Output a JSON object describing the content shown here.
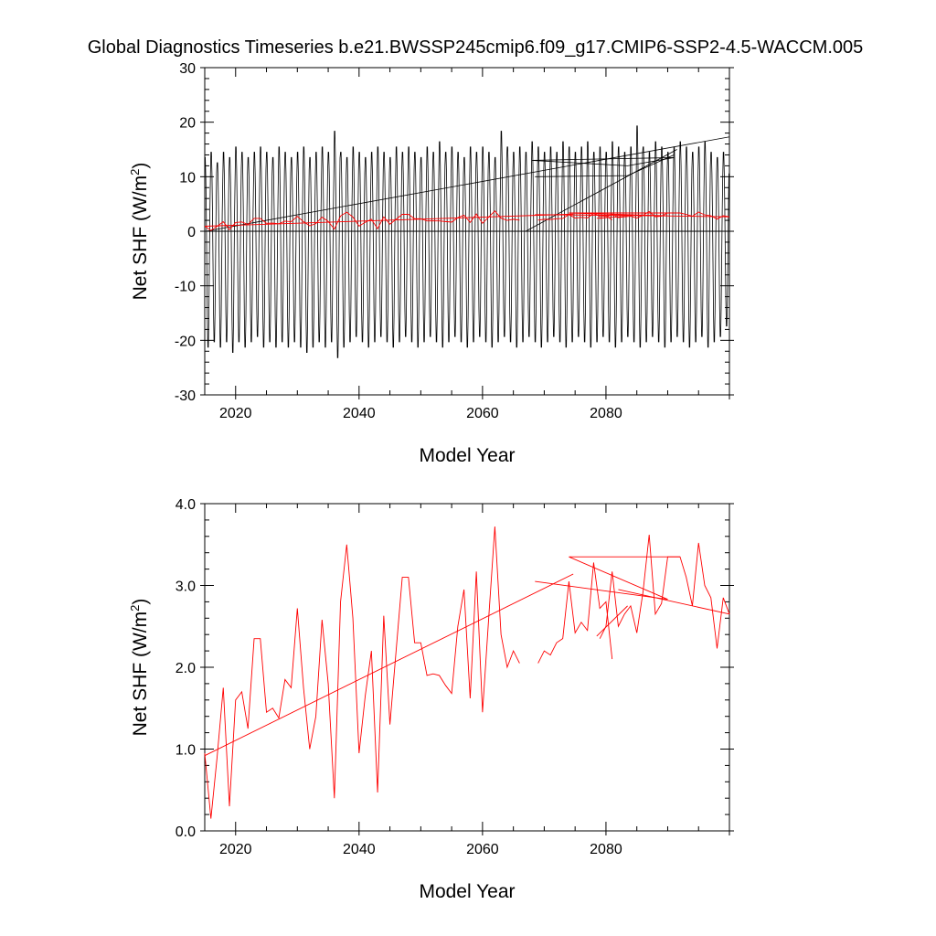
{
  "page_title": "Global Diagnostics Timeseries b.e21.BWSSP245cmip6.f09_g17.CMIP6-SSP2-4.5-WACCM.005",
  "chart_data": [
    {
      "type": "line",
      "ylabel_main": "Net SHF (W/m",
      "ylabel_sup": "2",
      "ylabel_close": ")",
      "xlabel": "Model Year",
      "xlim": [
        2015,
        2100
      ],
      "ylim": [
        -30,
        30
      ],
      "x_ticks": [
        2020,
        2040,
        2060,
        2080
      ],
      "x_tick_labels": [
        "2020",
        "2040",
        "2060",
        "2080"
      ],
      "y_ticks": [
        -30,
        -20,
        -10,
        0,
        10,
        20,
        30
      ],
      "y_tick_labels": [
        "-30",
        "-20",
        "-10",
        "0",
        "10",
        "20",
        "30"
      ],
      "zero_line": 0,
      "monthly_series": {
        "color": "#000000",
        "start_year": 2015,
        "segments": [
          {
            "start": 2015.0,
            "end": 2067.0
          },
          {
            "start": 2067.0,
            "end": 2100.0
          }
        ],
        "seasonal_amplitude_high": [
          14,
          15,
          13,
          15,
          14,
          16,
          15,
          14,
          15,
          16,
          15,
          14,
          16,
          15,
          14,
          15,
          16,
          14,
          15,
          16,
          15,
          19,
          15,
          14,
          16,
          15,
          14,
          15,
          16,
          15,
          14,
          16,
          15,
          16,
          15,
          14,
          16,
          15,
          17,
          15,
          16,
          15,
          14,
          16,
          15,
          16,
          15,
          14,
          19,
          16,
          15,
          16,
          15,
          17,
          16,
          15,
          16,
          15,
          17,
          16,
          15,
          16,
          17,
          15,
          16,
          15,
          17,
          16,
          15,
          16,
          20,
          16,
          15,
          17,
          16,
          15,
          16,
          17,
          16,
          15,
          16,
          17,
          15,
          14,
          15
        ],
        "seasonal_amplitude_low": [
          -22,
          -21,
          -22,
          -21,
          -23,
          -21,
          -22,
          -21,
          -20,
          -22,
          -21,
          -22,
          -21,
          -22,
          -21,
          -22,
          -23,
          -22,
          -21,
          -22,
          -21,
          -24,
          -22,
          -21,
          -20,
          -21,
          -22,
          -21,
          -20,
          -21,
          -22,
          -21,
          -20,
          -21,
          -22,
          -21,
          -20,
          -21,
          -22,
          -21,
          -20,
          -21,
          -22,
          -21,
          -20,
          -21,
          -22,
          -21,
          -20,
          -21,
          -22,
          -21,
          -20,
          -21,
          -22,
          -21,
          -20,
          -21,
          -22,
          -21,
          -20,
          -21,
          -22,
          -21,
          -20,
          -21,
          -22,
          -21,
          -20,
          -21,
          -22,
          -21,
          -20,
          -21,
          -22,
          -21,
          -20,
          -21,
          -22,
          -21,
          -20,
          -22,
          -21,
          -20,
          -18
        ]
      },
      "overlay_black_lines": [
        {
          "x": [
            2015.2,
            2100.0
          ],
          "y": [
            0.0,
            17.3
          ]
        },
        {
          "x": [
            2067.0,
            2091.5
          ],
          "y": [
            0.0,
            15.0
          ]
        },
        {
          "x": [
            2068.0,
            2091.0,
            2083.5,
            2068.0
          ],
          "y": [
            13.0,
            13.5,
            12.0,
            13.0
          ]
        },
        {
          "x": [
            2068.5,
            2083.5,
            2091.0
          ],
          "y": [
            10.0,
            10.2,
            14.0
          ]
        }
      ],
      "annual_series": {
        "color": "#ff0000",
        "years": [
          2015,
          2016,
          2017,
          2018,
          2019,
          2020,
          2021,
          2022,
          2023,
          2024,
          2025,
          2026,
          2027,
          2028,
          2029,
          2030,
          2031,
          2032,
          2033,
          2034,
          2035,
          2036,
          2037,
          2038,
          2039,
          2040,
          2041,
          2042,
          2043,
          2044,
          2045,
          2046,
          2047,
          2048,
          2049,
          2050,
          2051,
          2052,
          2053,
          2054,
          2055,
          2056,
          2057,
          2058,
          2059,
          2060,
          2061,
          2062,
          2063,
          2064,
          2065,
          2066
        ],
        "values": [
          0.95,
          0.15,
          0.9,
          1.75,
          0.3,
          1.6,
          1.7,
          1.25,
          2.35,
          2.35,
          1.45,
          1.5,
          1.38,
          1.85,
          1.75,
          2.72,
          1.75,
          1.0,
          1.4,
          2.58,
          1.8,
          0.4,
          2.8,
          3.5,
          2.6,
          0.95,
          1.65,
          2.2,
          0.47,
          2.63,
          1.3,
          2.2,
          3.1,
          3.1,
          2.3,
          2.3,
          1.9,
          1.92,
          1.9,
          1.78,
          1.68,
          2.5,
          2.95,
          1.62,
          3.17,
          1.45,
          2.6,
          3.72,
          2.4,
          2.0,
          2.2,
          2.05
        ]
      },
      "annual_series_b": {
        "color": "#ff0000",
        "years": [
          2069,
          2070,
          2071,
          2072,
          2073,
          2074,
          2075,
          2076,
          2077,
          2078,
          2079,
          2080,
          2081
        ],
        "values": [
          2.05,
          2.2,
          2.15,
          2.3,
          2.35,
          3.05,
          2.42,
          2.55,
          2.45,
          3.28,
          2.72,
          2.8,
          2.1
        ]
      },
      "annual_series_c": {
        "color": "#ff0000",
        "years": [
          2079,
          2080,
          2081,
          2082,
          2083,
          2084,
          2085,
          2086,
          2087,
          2088,
          2089,
          2090,
          2091,
          2092,
          2093,
          2094,
          2095,
          2096,
          2097,
          2098,
          2099,
          2100
        ],
        "values": [
          2.35,
          2.5,
          3.17,
          2.5,
          2.65,
          2.75,
          2.42,
          2.92,
          3.62,
          2.65,
          2.78,
          3.35,
          3.35,
          3.35,
          3.1,
          2.75,
          3.52,
          3.0,
          2.85,
          2.23,
          2.85,
          2.65
        ]
      },
      "overlay_red_lines": [
        {
          "x": [
            2015.0,
            2074.7
          ],
          "y": [
            0.92,
            3.14
          ]
        },
        {
          "x": [
            2068.5,
            2090.0,
            2074.0,
            2092.0
          ],
          "y": [
            3.05,
            2.83,
            3.35,
            3.35
          ]
        },
        {
          "x": [
            2082.0,
            2100.0
          ],
          "y": [
            2.95,
            2.65
          ]
        },
        {
          "x": [
            2078.5,
            2083.5
          ],
          "y": [
            2.38,
            2.75
          ]
        }
      ]
    },
    {
      "type": "line",
      "ylabel_main": "Net SHF (W/m",
      "ylabel_sup": "2",
      "ylabel_close": ")",
      "xlabel": "Model Year",
      "xlim": [
        2015,
        2100
      ],
      "ylim": [
        0.0,
        4.0
      ],
      "x_ticks": [
        2020,
        2040,
        2060,
        2080
      ],
      "x_tick_labels": [
        "2020",
        "2040",
        "2060",
        "2080"
      ],
      "y_ticks": [
        0.0,
        1.0,
        2.0,
        3.0,
        4.0
      ],
      "y_tick_labels": [
        "0.0",
        "1.0",
        "2.0",
        "3.0",
        "4.0"
      ]
    }
  ]
}
